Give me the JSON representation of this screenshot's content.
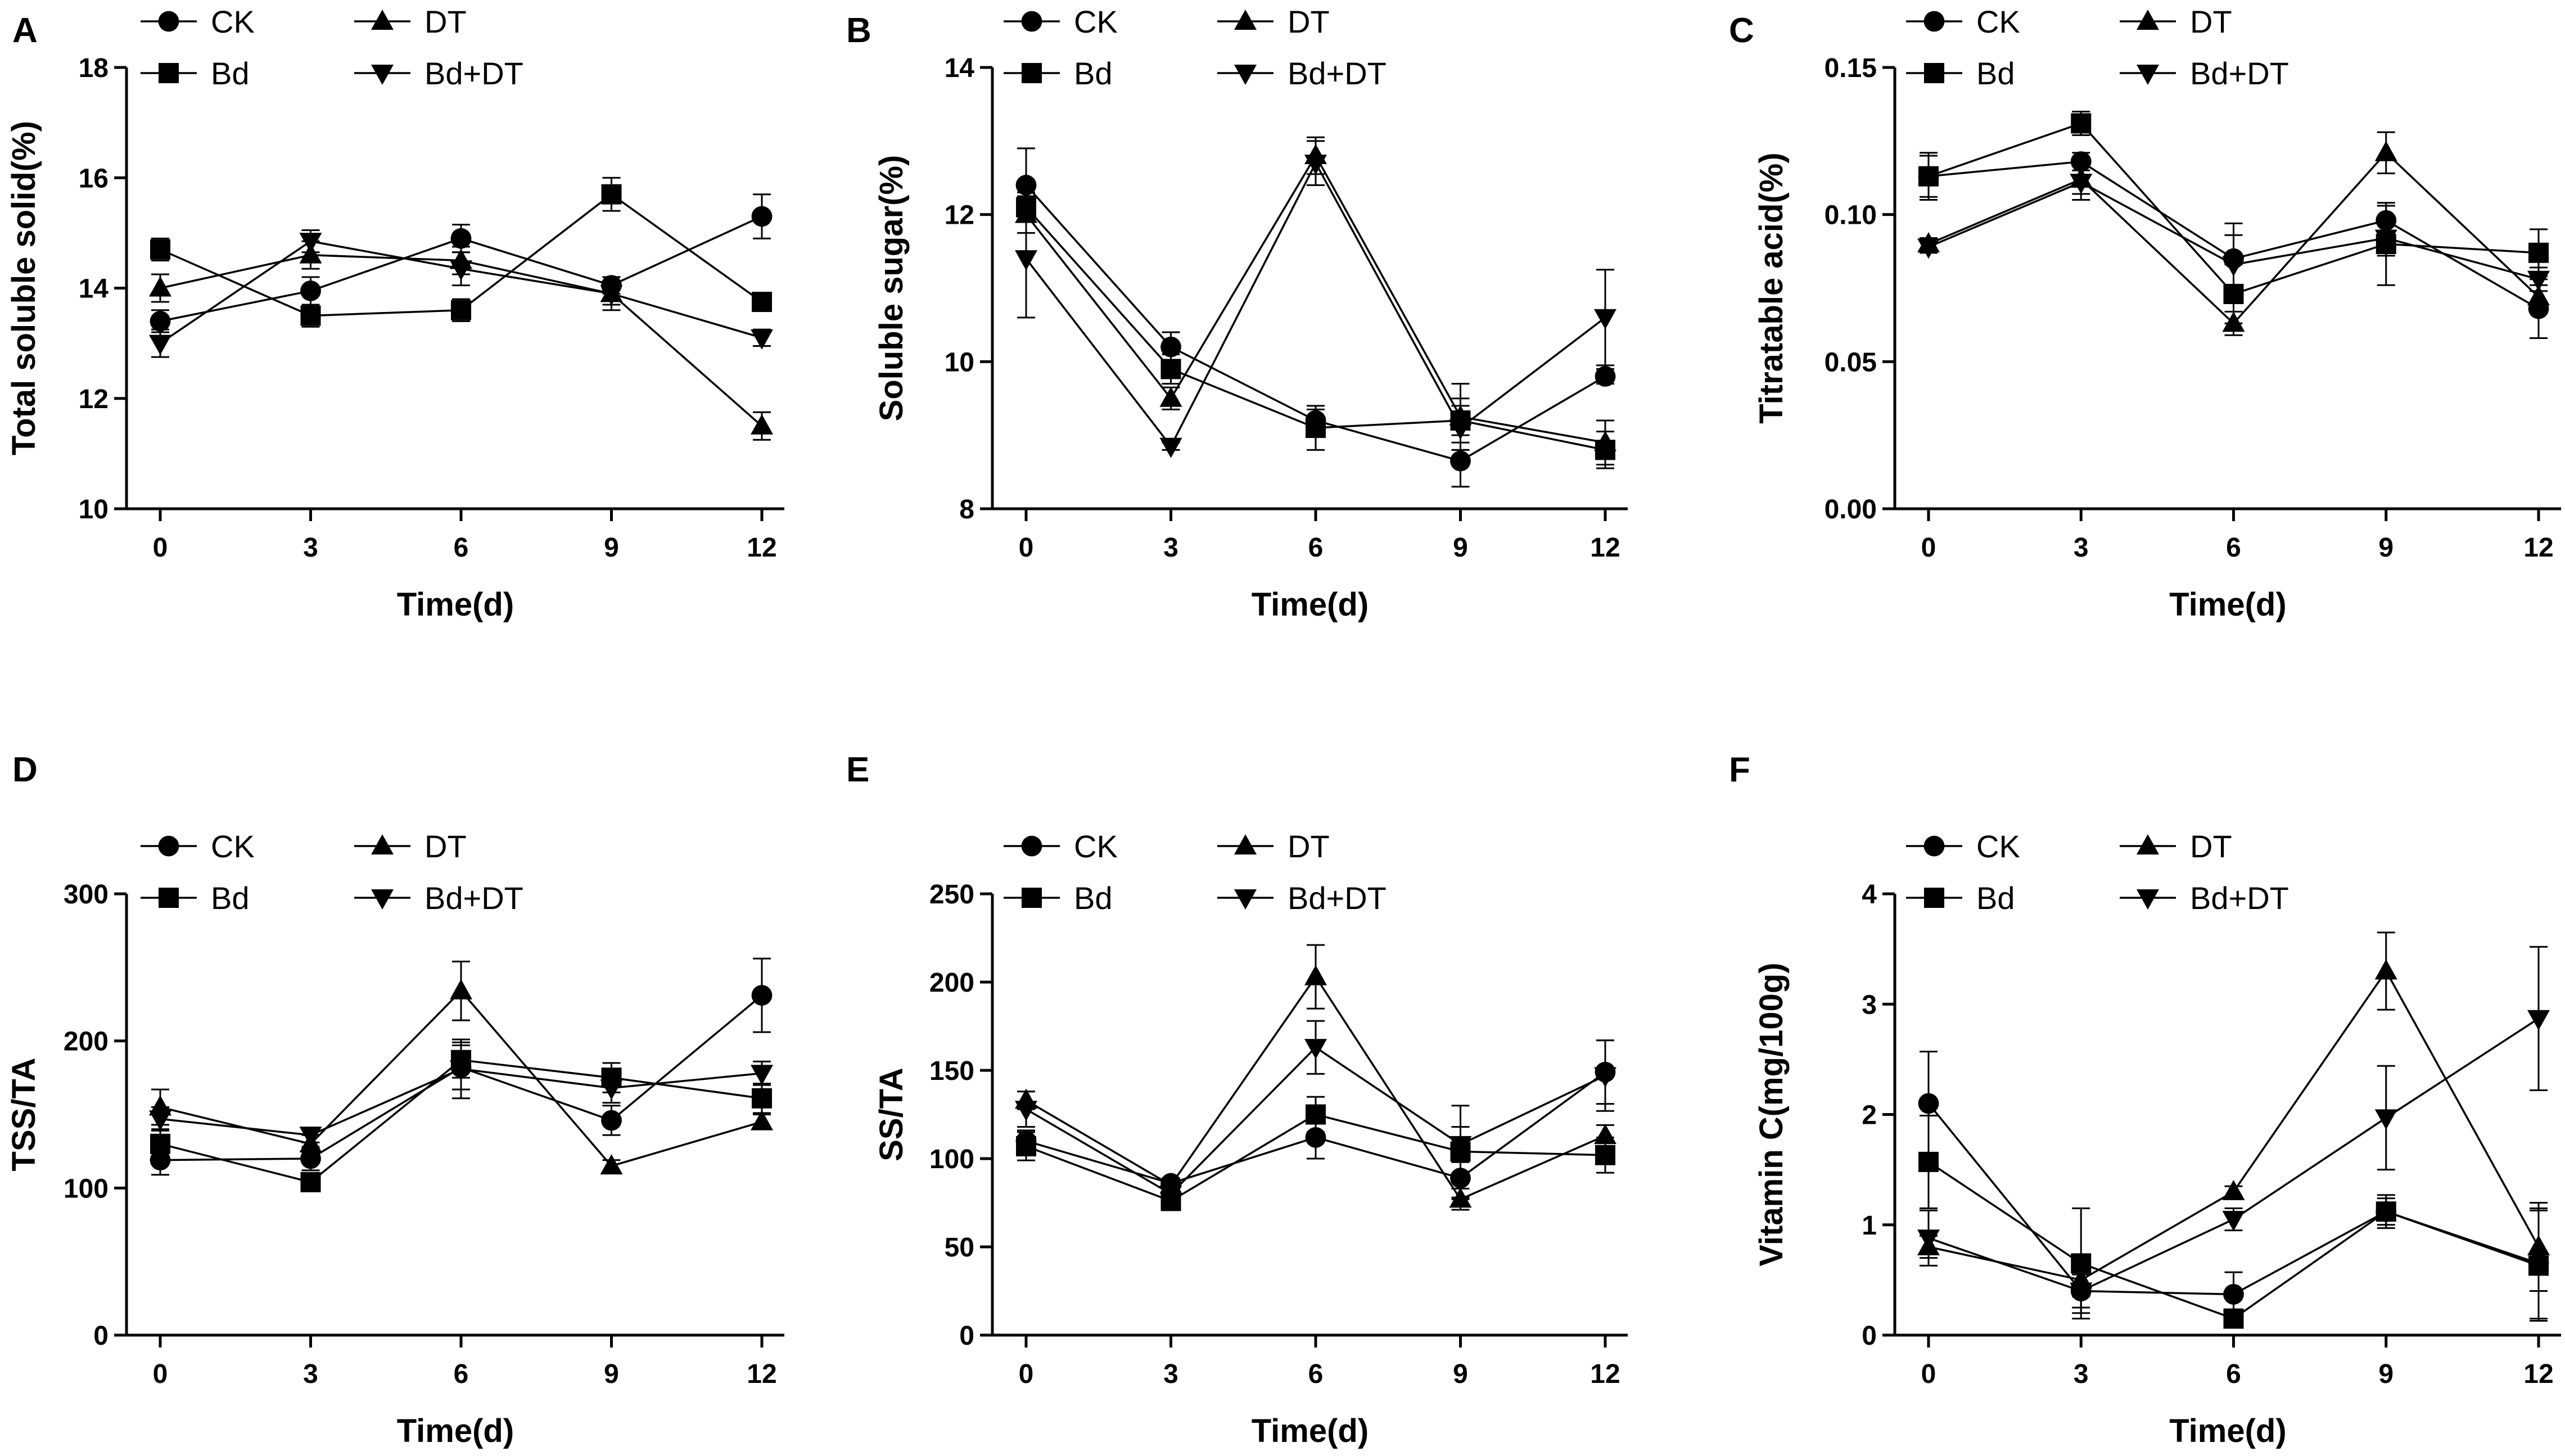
{
  "chart_data": [
    {
      "type": "line",
      "panel": "A",
      "title": "",
      "xlabel": "Time(d)",
      "ylabel": "Total soluble solid(%)",
      "x": [
        0,
        3,
        6,
        9,
        12
      ],
      "xticks": [
        "0",
        "3",
        "6",
        "9",
        "12"
      ],
      "ylim": [
        10,
        18
      ],
      "yticks": [
        "10",
        "12",
        "14",
        "16",
        "18"
      ],
      "series": [
        {
          "name": "CK",
          "marker": "circle",
          "values": [
            13.4,
            13.95,
            14.9,
            14.05,
            15.3
          ],
          "errors": [
            0.2,
            0.25,
            0.25,
            0.15,
            0.4
          ]
        },
        {
          "name": "DT",
          "marker": "triangle-up",
          "values": [
            14.0,
            14.6,
            14.5,
            13.9,
            11.5
          ],
          "errors": [
            0.25,
            0.25,
            0.25,
            0.2,
            0.25
          ]
        },
        {
          "name": "Bd",
          "marker": "square",
          "values": [
            14.7,
            13.5,
            13.6,
            15.7,
            13.75
          ],
          "errors": [
            0.2,
            0.2,
            0.2,
            0.3,
            0.1
          ]
        },
        {
          "name": "Bd+DT",
          "marker": "triangle-down",
          "values": [
            13.0,
            14.85,
            14.35,
            13.9,
            13.1
          ],
          "errors": [
            0.25,
            0.2,
            0.3,
            0.3,
            0.15
          ]
        }
      ]
    },
    {
      "type": "line",
      "panel": "B",
      "title": "",
      "xlabel": "Time(d)",
      "ylabel": "Soluble sugar(%)",
      "x": [
        0,
        3,
        6,
        9,
        12
      ],
      "xticks": [
        "0",
        "3",
        "6",
        "9",
        "12"
      ],
      "ylim": [
        8,
        14
      ],
      "yticks": [
        "8",
        "10",
        "12",
        "14"
      ],
      "series": [
        {
          "name": "CK",
          "marker": "circle",
          "values": [
            12.4,
            10.2,
            9.2,
            8.65,
            9.8
          ],
          "errors": [
            0.5,
            0.2,
            0.15,
            0.35,
            0.1
          ]
        },
        {
          "name": "DT",
          "marker": "triangle-up",
          "values": [
            12.0,
            9.5,
            12.8,
            9.25,
            8.9
          ],
          "errors": [
            0.25,
            0.15,
            0.25,
            0.45,
            0.3
          ]
        },
        {
          "name": "Bd",
          "marker": "square",
          "values": [
            12.1,
            9.9,
            9.1,
            9.2,
            8.8
          ],
          "errors": [
            0.2,
            0.2,
            0.3,
            0.3,
            0.25
          ]
        },
        {
          "name": "Bd+DT",
          "marker": "triangle-down",
          "values": [
            11.4,
            8.85,
            12.7,
            9.1,
            10.6
          ],
          "errors": [
            0.8,
            0.05,
            0.3,
            0.3,
            0.65
          ]
        }
      ]
    },
    {
      "type": "line",
      "panel": "C",
      "title": "",
      "xlabel": "Time(d)",
      "ylabel": "Titratable acid(%)",
      "x": [
        0,
        3,
        6,
        9,
        12
      ],
      "xticks": [
        "0",
        "3",
        "6",
        "9",
        "12"
      ],
      "ylim": [
        0,
        0.15
      ],
      "yticks": [
        "0.00",
        "0.05",
        "0.10",
        "0.15"
      ],
      "series": [
        {
          "name": "CK",
          "marker": "circle",
          "values": [
            0.113,
            0.118,
            0.085,
            0.098,
            0.068
          ],
          "errors": [
            0.007,
            0.003,
            0.012,
            0.005,
            0.01
          ]
        },
        {
          "name": "DT",
          "marker": "triangle-up",
          "values": [
            0.09,
            0.112,
            0.063,
            0.121,
            0.072
          ],
          "errors": [
            0.002,
            0.005,
            0.004,
            0.007,
            0.004
          ]
        },
        {
          "name": "Bd",
          "marker": "square",
          "values": [
            0.113,
            0.131,
            0.073,
            0.09,
            0.087
          ],
          "errors": [
            0.008,
            0.004,
            0.01,
            0.014,
            0.008
          ]
        },
        {
          "name": "Bd+DT",
          "marker": "triangle-down",
          "values": [
            0.089,
            0.111,
            0.083,
            0.092,
            0.078
          ],
          "errors": [
            0.002,
            0.006,
            0.01,
            0.006,
            0.004
          ]
        }
      ]
    },
    {
      "type": "line",
      "panel": "D",
      "title": "",
      "xlabel": "Time(d)",
      "ylabel": "TSS/TA",
      "x": [
        0,
        3,
        6,
        9,
        12
      ],
      "xticks": [
        "0",
        "3",
        "6",
        "9",
        "12"
      ],
      "ylim": [
        0,
        300
      ],
      "yticks": [
        "0",
        "100",
        "200",
        "300"
      ],
      "series": [
        {
          "name": "CK",
          "marker": "circle",
          "values": [
            119,
            120,
            182,
            146,
            231
          ],
          "errors": [
            10,
            8,
            15,
            10,
            25
          ]
        },
        {
          "name": "DT",
          "marker": "triangle-up",
          "values": [
            155,
            130,
            234,
            115,
            145
          ],
          "errors": [
            12,
            6,
            20,
            4,
            5
          ]
        },
        {
          "name": "Bd",
          "marker": "square",
          "values": [
            130,
            104,
            187,
            175,
            161
          ],
          "errors": [
            10,
            5,
            12,
            10,
            10
          ]
        },
        {
          "name": "Bd+DT",
          "marker": "triangle-down",
          "values": [
            147,
            136,
            181,
            168,
            178
          ],
          "errors": [
            8,
            5,
            20,
            10,
            8
          ]
        }
      ]
    },
    {
      "type": "line",
      "panel": "E",
      "title": "",
      "xlabel": "Time(d)",
      "ylabel": "SS/TA",
      "x": [
        0,
        3,
        6,
        9,
        12
      ],
      "xticks": [
        "0",
        "3",
        "6",
        "9",
        "12"
      ],
      "ylim": [
        0,
        250
      ],
      "yticks": [
        "0",
        "50",
        "100",
        "150",
        "200",
        "250"
      ],
      "series": [
        {
          "name": "CK",
          "marker": "circle",
          "values": [
            110,
            86,
            112,
            89,
            149
          ],
          "errors": [
            6,
            3,
            12,
            12,
            18
          ]
        },
        {
          "name": "DT",
          "marker": "triangle-up",
          "values": [
            133,
            85,
            203,
            77,
            113
          ],
          "errors": [
            5,
            4,
            18,
            6,
            6
          ]
        },
        {
          "name": "Bd",
          "marker": "square",
          "values": [
            107,
            76,
            125,
            104,
            102
          ],
          "errors": [
            8,
            4,
            10,
            26,
            10
          ]
        },
        {
          "name": "Bd+DT",
          "marker": "triangle-down",
          "values": [
            128,
            80,
            163,
            108,
            147
          ],
          "errors": [
            10,
            4,
            15,
            10,
            20
          ]
        }
      ]
    },
    {
      "type": "line",
      "panel": "F",
      "title": "",
      "xlabel": "Time(d)",
      "ylabel": "Vitamin C(mg/100g)",
      "x": [
        0,
        3,
        6,
        9,
        12
      ],
      "xticks": [
        "0",
        "3",
        "6",
        "9",
        "12"
      ],
      "ylim": [
        0,
        4
      ],
      "yticks": [
        "0",
        "1",
        "2",
        "3",
        "4"
      ],
      "series": [
        {
          "name": "CK",
          "marker": "circle",
          "values": [
            2.1,
            0.4,
            0.37,
            1.12,
            0.65
          ],
          "errors": [
            0.47,
            0.15,
            0.2,
            0.15,
            0.5
          ]
        },
        {
          "name": "DT",
          "marker": "triangle-up",
          "values": [
            0.8,
            0.5,
            1.3,
            3.3,
            0.8
          ],
          "errors": [
            0.1,
            0.15,
            0.05,
            0.35,
            0.4
          ]
        },
        {
          "name": "Bd",
          "marker": "square",
          "values": [
            1.57,
            0.65,
            0.15,
            1.12,
            0.63
          ],
          "errors": [
            0.42,
            0.5,
            0.05,
            0.12,
            0.5
          ]
        },
        {
          "name": "Bd+DT",
          "marker": "triangle-down",
          "values": [
            0.88,
            0.4,
            1.05,
            1.97,
            2.87
          ],
          "errors": [
            0.25,
            0.2,
            0.1,
            0.47,
            0.65
          ]
        }
      ]
    }
  ]
}
